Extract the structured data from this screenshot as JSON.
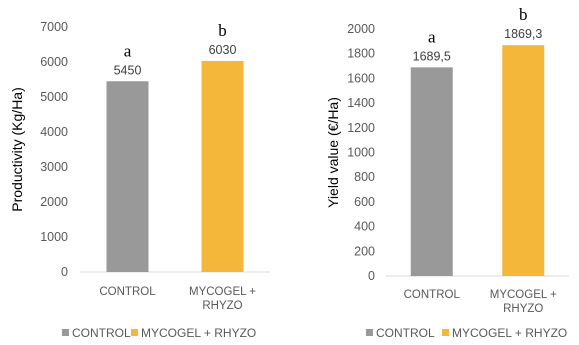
{
  "chart_data": [
    {
      "type": "bar",
      "categories": [
        "CONTROL",
        "MYCOGEL + RHYZO"
      ],
      "category_labels": [
        [
          "CONTROL"
        ],
        [
          "MYCOGEL +",
          "RHYZO"
        ]
      ],
      "values": [
        5450,
        6030
      ],
      "value_labels": [
        "5450",
        "6030"
      ],
      "significance": [
        "a",
        "b"
      ],
      "ylabel": "Productivity (Kg/Ha)",
      "ylim": [
        0,
        7000
      ],
      "yticks": [
        "0",
        "1000",
        "2000",
        "3000",
        "4000",
        "5000",
        "6000",
        "7000"
      ],
      "colors": [
        "#999999",
        "#f4b73a"
      ],
      "legend": {
        "position": "bottom",
        "entries": [
          "CONTROL",
          "MYCOGEL + RHYZO"
        ]
      },
      "grid": false
    },
    {
      "type": "bar",
      "categories": [
        "CONTROL",
        "MYCOGEL + RHYZO"
      ],
      "category_labels": [
        [
          "CONTROL"
        ],
        [
          "MYCOGEL +",
          "RHYZO"
        ]
      ],
      "values": [
        1689.5,
        1869.3
      ],
      "value_labels": [
        "1689,5",
        "1869,3"
      ],
      "significance": [
        "a",
        "b"
      ],
      "ylabel": "Yield value (€/Ha)",
      "ylim": [
        0,
        2000
      ],
      "yticks": [
        "0",
        "200",
        "400",
        "600",
        "800",
        "1000",
        "1200",
        "1400",
        "1600",
        "1800",
        "2000"
      ],
      "colors": [
        "#999999",
        "#f4b73a"
      ],
      "legend": {
        "position": "bottom",
        "entries": [
          "CONTROL",
          "MYCOGEL + RHYZO"
        ]
      },
      "grid": false
    }
  ]
}
